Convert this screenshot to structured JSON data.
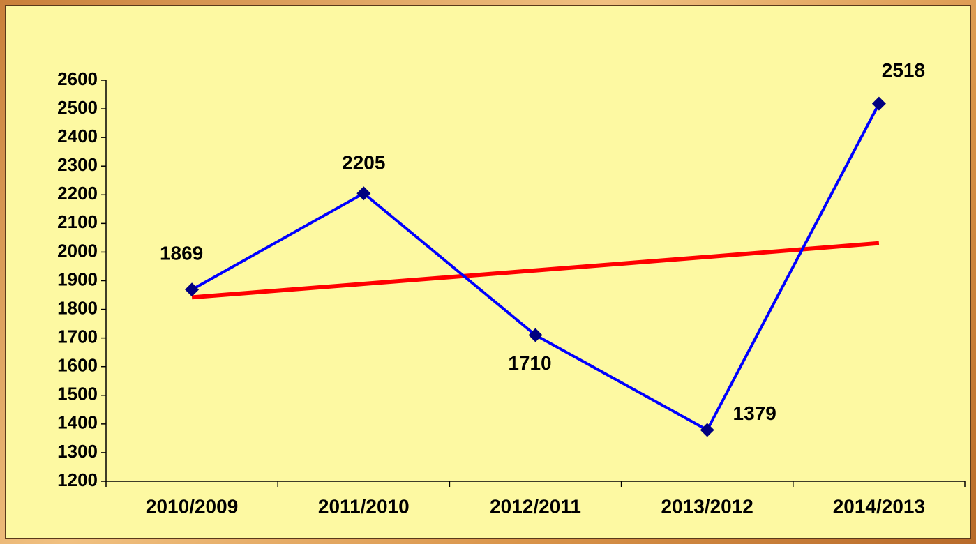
{
  "chart_data": {
    "type": "line",
    "categories": [
      "2010/2009",
      "2011/2010",
      "2012/2011",
      "2013/2012",
      "2014/2013"
    ],
    "series": [
      {
        "color": "#0000ff",
        "marker_color": "#000080",
        "values": [
          1869,
          2205,
          1710,
          1379,
          2518
        ],
        "data_labels": true
      },
      {
        "color": "#ff0000",
        "values": [
          1842,
          1889,
          1936,
          1983,
          2031
        ]
      }
    ],
    "ylim": [
      1200,
      2600
    ],
    "yticks": [
      1200,
      1300,
      1400,
      1500,
      1600,
      1700,
      1800,
      1900,
      2000,
      2100,
      2200,
      2300,
      2400,
      2500,
      2600
    ],
    "grid": false
  }
}
